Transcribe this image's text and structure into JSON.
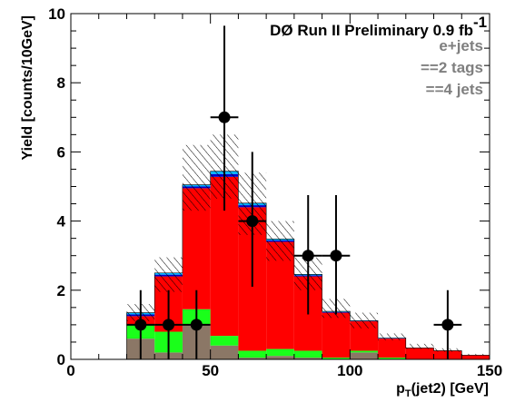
{
  "chart_data": {
    "type": "bar",
    "title": "",
    "xlabel_base": "p",
    "xlabel_sub": "T",
    "xlabel_rest": "(jet2) [GeV]",
    "ylabel": "Yield [counts/10GeV]",
    "xlim": [
      0,
      150
    ],
    "ylim": [
      0,
      10
    ],
    "x_ticks": [
      "0",
      "50",
      "100",
      "150"
    ],
    "y_ticks": [
      "0",
      "2",
      "4",
      "6",
      "8",
      "10"
    ],
    "stacked": true,
    "bin_width": 10,
    "bin_centers": [
      5,
      15,
      25,
      35,
      45,
      55,
      65,
      75,
      85,
      95,
      105,
      115,
      125,
      135,
      145
    ],
    "series": [
      {
        "color": "#8b7766",
        "values": [
          0,
          0,
          0.6,
          0.2,
          1.0,
          0.4,
          0.05,
          0.1,
          0.05,
          0,
          0.2,
          0,
          0,
          0,
          0
        ]
      },
      {
        "color": "#1aff1a",
        "values": [
          0,
          0,
          0.4,
          0.6,
          0.45,
          0.28,
          0.2,
          0.2,
          0.2,
          0.05,
          0.05,
          0.05,
          0,
          0,
          0
        ]
      },
      {
        "color": "#ff0000",
        "values": [
          0,
          0,
          0.25,
          1.6,
          3.5,
          4.6,
          4.15,
          3.1,
          2.15,
          1.3,
          0.85,
          0.55,
          0.33,
          0.25,
          0.12
        ]
      },
      {
        "color": "#0000cc",
        "values": [
          0,
          0,
          0.05,
          0.05,
          0.05,
          0.08,
          0.06,
          0.04,
          0.03,
          0.02,
          0.01,
          0.01,
          0,
          0,
          0
        ]
      },
      {
        "color": "#00b3ff",
        "values": [
          0,
          0,
          0.05,
          0.05,
          0.05,
          0.08,
          0.06,
          0.04,
          0.03,
          0.02,
          0.01,
          0.01,
          0,
          0,
          0
        ]
      }
    ],
    "uncertainty_band": {
      "pattern": "hatched",
      "low": [
        0,
        0,
        1.1,
        1.95,
        4.3,
        4.65,
        3.6,
        2.85,
        2.0,
        1.2,
        0.9,
        0.55,
        0.3,
        0.22,
        0.12
      ],
      "high": [
        0,
        0,
        1.6,
        2.95,
        6.2,
        6.5,
        5.4,
        4.0,
        2.95,
        1.75,
        1.35,
        0.75,
        0.45,
        0.32,
        0.16
      ]
    },
    "data_points": {
      "x": [
        25,
        35,
        45,
        55,
        65,
        85,
        95,
        135
      ],
      "y": [
        1,
        1,
        1,
        7,
        4,
        3,
        3,
        1
      ],
      "y_low": [
        0,
        0,
        0,
        4.3,
        2.1,
        1.3,
        1.3,
        0
      ],
      "y_high": [
        2,
        2,
        2,
        9.65,
        6.0,
        4.75,
        4.75,
        2
      ],
      "x_err": 5
    },
    "legend": {
      "title": "DØ Run II Preliminary 0.9 fb",
      "title_sup": "-1",
      "lines": [
        "e+jets",
        "==2 tags",
        "==4 jets"
      ],
      "placement": "top-right"
    }
  }
}
